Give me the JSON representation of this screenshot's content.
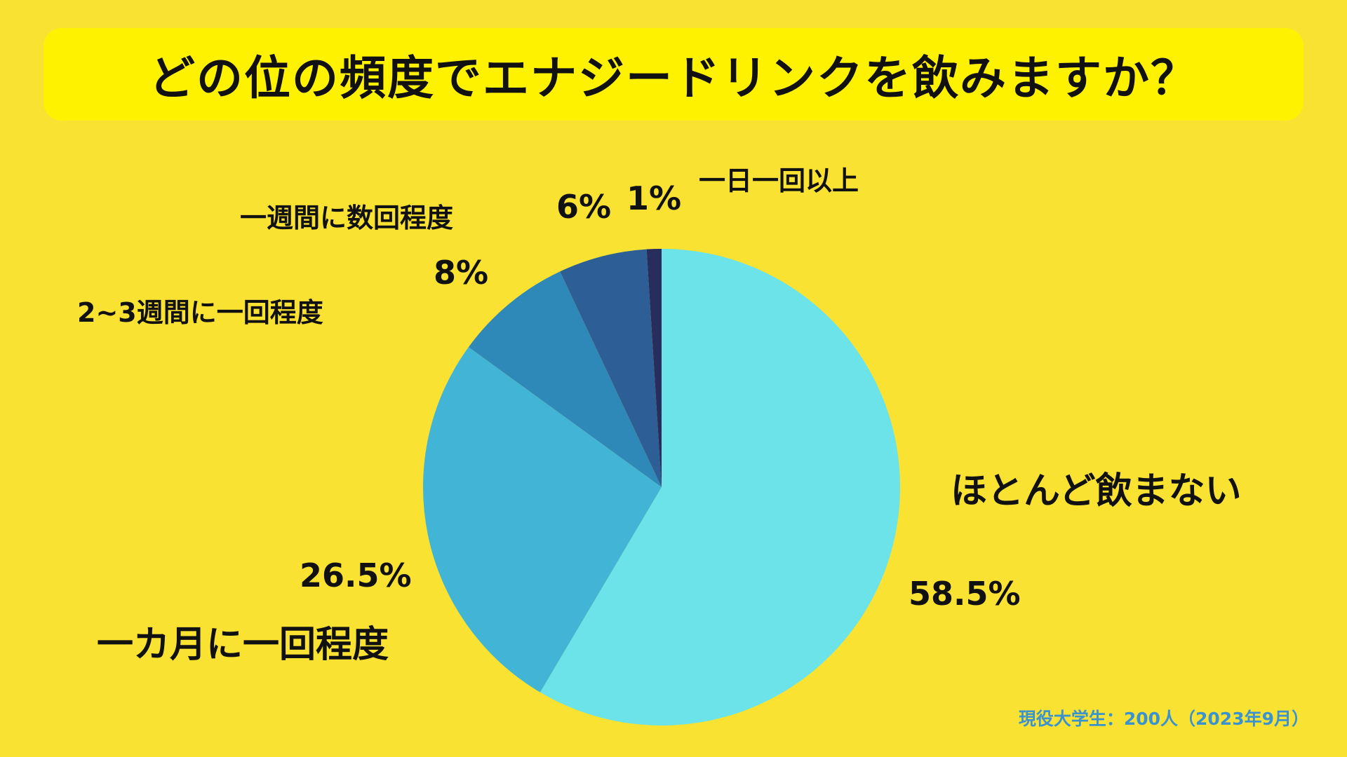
{
  "title": "どの位の頻度でエナジードリンクを飲みますか？",
  "source": "現役大学生：200人（2023年9月）",
  "chart_data": {
    "type": "pie",
    "title": "どの位の頻度でエナジードリンクを飲みますか？",
    "slices": [
      {
        "label": "ほとんど飲まない",
        "value": 58.5,
        "value_label": "58.5%",
        "color": "#6be3e8"
      },
      {
        "label": "一カ月に一回程度",
        "value": 26.5,
        "value_label": "26.5%",
        "color": "#42b5d6"
      },
      {
        "label": "2~3週間に一回程度",
        "value": 8,
        "value_label": "8%",
        "color": "#2e88b8"
      },
      {
        "label": "一週間に数回程度",
        "value": 6,
        "value_label": "6%",
        "color": "#2d5e96"
      },
      {
        "label": "一日一回以上",
        "value": 1,
        "value_label": "1%",
        "color": "#272d5c"
      }
    ],
    "direction": "clockwise",
    "start": "12 o'clock",
    "legend": "none (direct labels)"
  }
}
